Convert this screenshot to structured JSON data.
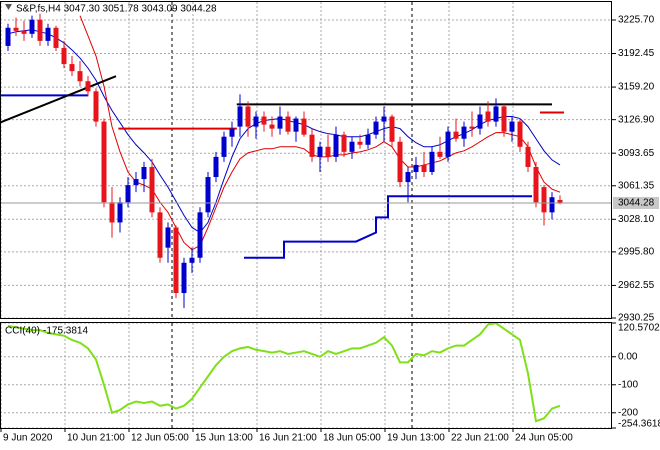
{
  "chart_data": {
    "type": "candlestick",
    "title": "S&P,fs,H4  3047.30 3051.78 3043.09 3044.28",
    "up_color": "#0000cd",
    "down_color": "#e8141b",
    "grid": true,
    "categories": [
      "9 Jun 2020",
      null,
      null,
      null,
      null,
      null,
      null,
      null,
      "10 Jun 21:00",
      null,
      null,
      null,
      null,
      null,
      null,
      null,
      "12 Jun 05:00",
      null,
      null,
      null,
      null,
      null,
      null,
      null,
      "15 Jun 13:00",
      null,
      null,
      null,
      null,
      null,
      null,
      null,
      "16 Jun 21:00",
      null,
      null,
      null,
      null,
      null,
      null,
      null,
      "18 Jun 05:00",
      null,
      null,
      null,
      null,
      null,
      null,
      null,
      "19 Jun 13:00",
      null,
      null,
      null,
      null,
      null,
      null,
      null,
      "22 Jun 21:00",
      null,
      null,
      null,
      null,
      null,
      null,
      null,
      "24 Jun 05:00",
      null,
      null,
      null,
      null,
      null
    ],
    "open": [
      3200,
      3218,
      3215,
      3212,
      3226,
      3205,
      3218,
      3198,
      3182,
      3175,
      3165,
      3155,
      3125,
      3045,
      3025,
      3045,
      3062,
      3068,
      3080,
      3035,
      3000,
      3020,
      2955,
      2985,
      2990,
      3035,
      3070,
      3090,
      3110,
      3120,
      3140,
      3120,
      3130,
      3122,
      3118,
      3130,
      3115,
      3128,
      3112,
      3090,
      3100,
      3090,
      3112,
      3095,
      3105,
      3102,
      3112,
      3125,
      3130,
      3105,
      3065,
      3075,
      3082,
      3075,
      3095,
      3090,
      3115,
      3108,
      3120,
      3118,
      3135,
      3125,
      3140,
      3115,
      3125,
      3100,
      3080,
      3060,
      3035,
      3047.3
    ],
    "high": [
      3222,
      3228,
      3225,
      3230,
      3232,
      3222,
      3220,
      3205,
      3190,
      3185,
      3170,
      3158,
      3128,
      3060,
      3050,
      3070,
      3075,
      3085,
      3088,
      3040,
      3025,
      3022,
      2990,
      3000,
      3040,
      3075,
      3095,
      3115,
      3125,
      3152,
      3145,
      3135,
      3135,
      3130,
      3140,
      3135,
      3130,
      3135,
      3118,
      3105,
      3112,
      3120,
      3115,
      3110,
      3112,
      3118,
      3130,
      3140,
      3132,
      3110,
      3080,
      3090,
      3095,
      3100,
      3110,
      3120,
      3128,
      3125,
      3135,
      3140,
      3145,
      3148,
      3142,
      3130,
      3128,
      3105,
      3085,
      3062,
      3055,
      3051.78
    ],
    "low": [
      3195,
      3210,
      3205,
      3208,
      3200,
      3200,
      3195,
      3178,
      3170,
      3160,
      3150,
      3120,
      3040,
      3010,
      3015,
      3040,
      3055,
      3055,
      3030,
      2985,
      2985,
      2950,
      2940,
      2975,
      2985,
      3030,
      3065,
      3085,
      3100,
      3110,
      3110,
      3108,
      3115,
      3110,
      3112,
      3112,
      3105,
      3110,
      3085,
      3075,
      3085,
      3085,
      3090,
      3088,
      3098,
      3098,
      3108,
      3105,
      3100,
      3060,
      3045,
      3068,
      3070,
      3072,
      3088,
      3085,
      3105,
      3100,
      3110,
      3112,
      3120,
      3120,
      3110,
      3105,
      3095,
      3075,
      3040,
      3022,
      3028,
      3043.09
    ],
    "close": [
      3218,
      3215,
      3212,
      3226,
      3205,
      3218,
      3198,
      3182,
      3175,
      3165,
      3155,
      3125,
      3045,
      3025,
      3045,
      3062,
      3068,
      3080,
      3035,
      2990,
      3020,
      2955,
      2985,
      2990,
      3035,
      3070,
      3090,
      3110,
      3118,
      3140,
      3120,
      3130,
      3122,
      3118,
      3130,
      3115,
      3128,
      3112,
      3090,
      3100,
      3090,
      3112,
      3095,
      3105,
      3102,
      3112,
      3125,
      3130,
      3105,
      3065,
      3075,
      3082,
      3075,
      3095,
      3090,
      3115,
      3108,
      3120,
      3118,
      3132,
      3125,
      3140,
      3115,
      3125,
      3100,
      3080,
      3045,
      3035,
      3050,
      3044.28
    ],
    "overlays": [
      {
        "color": "#0000c8",
        "values": [
          3212,
          3214,
          3215,
          3216,
          3214,
          3212,
          3208,
          3203,
          3196,
          3188,
          3178,
          3166,
          3150,
          3136,
          3124,
          3112,
          3102,
          3094,
          3085,
          3072,
          3060,
          3046,
          3032,
          3020,
          3015,
          3025,
          3045,
          3068,
          3090,
          3108,
          3118,
          3123,
          3126,
          3127,
          3128,
          3126,
          3124,
          3122,
          3118,
          3115,
          3113,
          3112,
          3110,
          3110,
          3110,
          3112,
          3115,
          3118,
          3120,
          3118,
          3110,
          3104,
          3100,
          3100,
          3102,
          3106,
          3110,
          3113,
          3117,
          3122,
          3126,
          3128,
          3130,
          3130,
          3128,
          3120,
          3108,
          3096,
          3087,
          3082
        ]
      },
      {
        "color": "#e00000",
        "values": [
          null,
          null,
          null,
          null,
          null,
          null,
          null,
          null,
          null,
          3230,
          3210,
          3190,
          3160,
          3120,
          3095,
          3075,
          3065,
          3062,
          3058,
          3045,
          3035,
          3020,
          3005,
          2998,
          3002,
          3020,
          3040,
          3060,
          3075,
          3088,
          3094,
          3096,
          3098,
          3098,
          3100,
          3100,
          3100,
          3098,
          3092,
          3090,
          3090,
          3092,
          3092,
          3094,
          3095,
          3097,
          3100,
          3105,
          3100,
          3088,
          3080,
          3080,
          3082,
          3084,
          3086,
          3090,
          3094,
          3096,
          3100,
          3105,
          3110,
          3114,
          3114,
          3112,
          3110,
          3100,
          3080,
          3065,
          3058,
          3055
        ]
      }
    ],
    "lines": [
      {
        "color": "#0000cd",
        "x": [
          -1,
          10
        ],
        "values": [
          3151,
          3151
        ]
      },
      {
        "color": "#000000",
        "x": [
          -1,
          13.5
        ],
        "values": [
          3124,
          3170
        ]
      },
      {
        "color": "#e00000",
        "x": [
          13.8,
          28.6
        ],
        "values": [
          3118,
          3118
        ]
      },
      {
        "color": "#000000",
        "x": [
          28.6,
          68
        ],
        "values": [
          3142,
          3142
        ]
      },
      {
        "color": "#e00000",
        "x": [
          66.5,
          69.5
        ],
        "values": [
          3134,
          3134
        ]
      },
      {
        "color": "#0000cd",
        "x": [
          29.5,
          34.5,
          34.5,
          43.5,
          43.5,
          46,
          46,
          47.5,
          47.5,
          65.5
        ],
        "values": [
          2990,
          2990,
          3006,
          3006,
          3006,
          3015,
          3030,
          3030,
          3051,
          3051
        ]
      }
    ],
    "ylim": [
      2930.25,
      3243.55
    ],
    "yticks": [
      {
        "value": 3225.7,
        "label": "3225.70"
      },
      3192.45,
      {
        "value": 3159.2,
        "label": "3159.20"
      },
      {
        "value": 3126.9,
        "label": "3126.90"
      },
      3093.65,
      3061.35,
      {
        "value": 3028.1,
        "label": "3028.10"
      },
      {
        "value": 2995.8,
        "label": "2995.80"
      },
      2962.55,
      2930.25
    ],
    "cci": {
      "name": "CCI(40)",
      "color": "#7fe01a",
      "values": [
        110,
        105,
        100,
        95,
        95,
        85,
        80,
        75,
        60,
        50,
        30,
        -10,
        -100,
        -200,
        -190,
        -170,
        -160,
        -165,
        -160,
        -175,
        -170,
        -185,
        -175,
        -150,
        -110,
        -70,
        -30,
        0,
        20,
        30,
        35,
        25,
        20,
        15,
        20,
        10,
        15,
        20,
        10,
        0,
        20,
        10,
        20,
        30,
        30,
        40,
        50,
        70,
        40,
        -20,
        -20,
        10,
        5,
        20,
        15,
        30,
        40,
        40,
        60,
        80,
        115,
        120,
        100,
        80,
        60,
        -60,
        -230,
        -220,
        -185,
        -175.3814
      ],
      "ylim": [
        -254.3618,
        120.5702
      ],
      "yticks": [
        120.5702,
        {
          "value": 0,
          "label": "0.00"
        },
        -100,
        -200,
        -254.3618
      ]
    }
  }
}
